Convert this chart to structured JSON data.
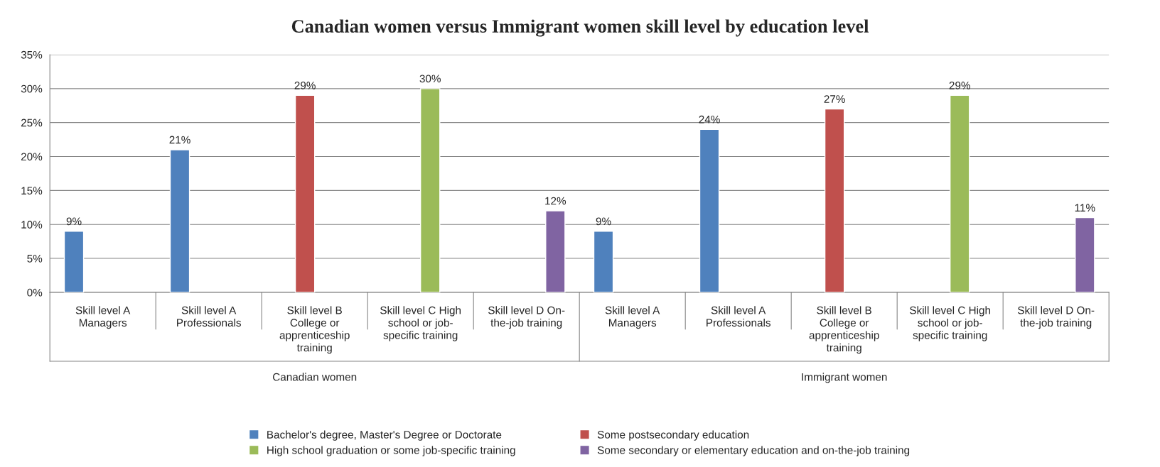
{
  "chart_data": {
    "type": "bar",
    "title": "Canadian women versus Immigrant women skill level by education level",
    "categories": [
      "Skill level A\nManagers",
      "Skill level A\nProfessionals",
      "Skill level B\nCollege or\napprenticeship\ntraining",
      "Skill level C High\nschool or job-\nspecific training",
      "Skill level D On-\nthe-job training",
      "Skill level A\nManagers",
      "Skill level A\nProfessionals",
      "Skill level B\nCollege or\napprenticeship\ntraining",
      "Skill level C High\nschool or job-\nspecific training",
      "Skill level D On-\nthe-job training"
    ],
    "series": [
      {
        "name": "Bachelor's degree, Master's Degree or Doctorate",
        "color": "#4f81bd",
        "values": [
          9,
          21,
          null,
          null,
          null,
          9,
          24,
          null,
          null,
          null
        ],
        "value_labels": [
          "9%",
          "21%",
          null,
          null,
          null,
          "9%",
          "24%",
          null,
          null,
          null
        ]
      },
      {
        "name": "Some postsecondary education",
        "color": "#c0504d",
        "values": [
          null,
          null,
          29,
          null,
          null,
          null,
          null,
          27,
          null,
          null
        ],
        "value_labels": [
          null,
          null,
          "29%",
          null,
          null,
          null,
          null,
          "27%",
          null,
          null
        ]
      },
      {
        "name": "High school graduation or some job-specific training",
        "color": "#9bbb59",
        "values": [
          null,
          null,
          null,
          30,
          null,
          null,
          null,
          null,
          29,
          null
        ],
        "value_labels": [
          null,
          null,
          null,
          "30%",
          null,
          null,
          null,
          null,
          "29%",
          null
        ]
      },
      {
        "name": "Some secondary or elementary education and on-the-job training",
        "color": "#8064a2",
        "values": [
          null,
          null,
          null,
          null,
          12,
          null,
          null,
          null,
          null,
          11
        ],
        "value_labels": [
          null,
          null,
          null,
          null,
          "12%",
          null,
          null,
          null,
          null,
          "11%"
        ]
      }
    ],
    "annotations": [
      "Canadian women",
      "Immigrant women"
    ],
    "ylim": [
      0,
      35
    ],
    "yticks": [
      {
        "value": 0,
        "label": "0%"
      },
      {
        "value": 5,
        "label": "5%"
      },
      {
        "value": 10,
        "label": "10%"
      },
      {
        "value": 15,
        "label": "15%"
      },
      {
        "value": 20,
        "label": "20%"
      },
      {
        "value": 25,
        "label": "25%"
      },
      {
        "value": 30,
        "label": "30%"
      },
      {
        "value": 35,
        "label": "35%"
      }
    ],
    "grid": "y",
    "legend": "bottom"
  }
}
